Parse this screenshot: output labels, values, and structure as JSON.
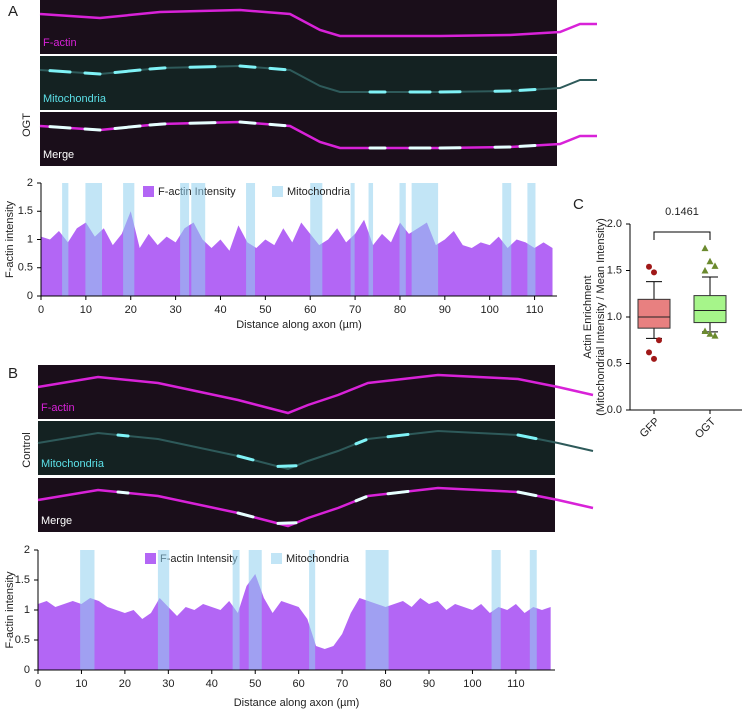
{
  "panels": [
    {
      "letter": "A",
      "condition": "OGT",
      "channels": [
        "F-actin",
        "Mitochondria",
        "Merge"
      ]
    },
    {
      "letter": "B",
      "condition": "Control",
      "channels": [
        "F-actin",
        "Mitochondria",
        "Merge"
      ]
    },
    {
      "letter": "C"
    }
  ],
  "chart_data": [
    {
      "type": "area",
      "ylabel": "F-actin intensity",
      "xlabel": "Distance along axon (µm)",
      "x": [
        0,
        2,
        4,
        6,
        8,
        10,
        12,
        14,
        16,
        18,
        20,
        22,
        24,
        26,
        28,
        30,
        32,
        34,
        36,
        38,
        40,
        42,
        44,
        46,
        48,
        50,
        52,
        54,
        56,
        58,
        60,
        62,
        64,
        66,
        68,
        70,
        72,
        74,
        76,
        78,
        80,
        82,
        84,
        86,
        88,
        90,
        92,
        94,
        96,
        98,
        100,
        102,
        104,
        106,
        108,
        110,
        112,
        114
      ],
      "series": [
        {
          "name": "F-actin Intensity",
          "color": "#b366f5",
          "values": [
            1.05,
            1.0,
            1.15,
            0.95,
            1.2,
            1.3,
            1.05,
            1.2,
            0.9,
            1.1,
            1.5,
            0.85,
            1.1,
            0.9,
            1.05,
            0.95,
            1.2,
            1.3,
            1.0,
            0.85,
            1.0,
            0.8,
            1.25,
            0.95,
            0.85,
            1.0,
            0.9,
            1.2,
            0.95,
            1.3,
            1.1,
            0.9,
            1.0,
            1.2,
            0.95,
            1.1,
            1.35,
            0.9,
            1.1,
            0.95,
            1.3,
            1.1,
            1.2,
            1.3,
            0.9,
            1.0,
            1.15,
            0.9,
            0.85,
            0.95,
            0.9,
            1.05,
            0.85,
            1.0,
            0.95,
            0.85,
            0.95,
            0.85
          ]
        }
      ],
      "bands": {
        "name": "Mitochondria",
        "color": "#8fd0ee",
        "ranges": [
          [
            4.7,
            6.1
          ],
          [
            9.9,
            13.6
          ],
          [
            18.3,
            20.8
          ],
          [
            31,
            33
          ],
          [
            33.5,
            36.6
          ],
          [
            45.7,
            47.7
          ],
          [
            60,
            62.7
          ],
          [
            69,
            69.9
          ],
          [
            73,
            74
          ],
          [
            79.9,
            81.3
          ],
          [
            82.6,
            88.5
          ],
          [
            102.8,
            104.8
          ],
          [
            108.4,
            110.2
          ]
        ]
      },
      "xlim": [
        0,
        115
      ],
      "xticks": [
        0,
        10,
        20,
        30,
        40,
        50,
        60,
        70,
        80,
        90,
        100,
        110
      ],
      "ylim": [
        0,
        2
      ],
      "yticks": [
        0,
        0.5,
        1,
        1.5,
        2
      ]
    },
    {
      "type": "area",
      "ylabel": "F-actin intensity",
      "xlabel": "Distance along axon (µm)",
      "x": [
        0,
        2,
        4,
        6,
        8,
        10,
        12,
        14,
        16,
        18,
        20,
        22,
        24,
        26,
        28,
        30,
        32,
        34,
        36,
        38,
        40,
        42,
        44,
        46,
        48,
        50,
        52,
        54,
        56,
        58,
        60,
        62,
        64,
        66,
        68,
        70,
        72,
        74,
        76,
        78,
        80,
        82,
        84,
        86,
        88,
        90,
        92,
        94,
        96,
        98,
        100,
        102,
        104,
        106,
        108,
        110,
        112,
        114,
        116,
        118
      ],
      "series": [
        {
          "name": "F-actin Intensity",
          "color": "#b366f5",
          "values": [
            1.1,
            1.15,
            1.05,
            1.1,
            1.15,
            1.1,
            1.2,
            1.15,
            1.05,
            1.0,
            0.95,
            1.0,
            0.85,
            0.95,
            1.2,
            1.05,
            0.9,
            1.05,
            1.0,
            1.1,
            1.05,
            1.0,
            1.15,
            0.95,
            1.4,
            1.6,
            1.2,
            0.95,
            1.15,
            1.1,
            1.05,
            0.85,
            0.4,
            0.35,
            0.4,
            0.6,
            0.95,
            1.2,
            1.15,
            1.1,
            1.05,
            1.1,
            1.15,
            1.05,
            1.2,
            1.1,
            1.15,
            1.0,
            1.1,
            1.05,
            1.0,
            1.1,
            0.95,
            1.05,
            1.0,
            1.1,
            0.95,
            1.05,
            1.0,
            1.05
          ]
        }
      ],
      "bands": {
        "name": "Mitochondria",
        "color": "#8fd0ee",
        "ranges": [
          [
            9.7,
            13
          ],
          [
            27.6,
            30.2
          ],
          [
            44.8,
            46.4
          ],
          [
            48.5,
            51.5
          ],
          [
            62.4,
            63.8
          ],
          [
            75.4,
            80.7
          ],
          [
            104.4,
            106.5
          ],
          [
            113.2,
            114.8
          ]
        ]
      },
      "xlim": [
        0,
        119
      ],
      "xticks": [
        0,
        10,
        20,
        30,
        40,
        50,
        60,
        70,
        80,
        90,
        100,
        110
      ],
      "ylim": [
        0,
        2
      ],
      "yticks": [
        0,
        0.5,
        1,
        1.5,
        2
      ]
    },
    {
      "type": "box",
      "ylabel": [
        "Actin Enrichment",
        "(Mitochondrial Intensity / Mean Intensity)"
      ],
      "annotations": [
        "0.1461"
      ],
      "series": [
        {
          "name": "GFP",
          "color": "#e88080",
          "edge": "#a01818",
          "marker": "circle",
          "whisker_low": 0.77,
          "q1": 0.88,
          "median": 1.0,
          "q3": 1.19,
          "whisker_high": 1.38,
          "outliers": [
            1.54,
            1.48,
            0.75,
            0.62,
            0.55
          ]
        },
        {
          "name": "OGT",
          "color": "#a6f58a",
          "edge": "#6b8a2e",
          "marker": "triangle",
          "whisker_low": 0.84,
          "q1": 0.94,
          "median": 1.07,
          "q3": 1.23,
          "whisker_high": 1.43,
          "outliers": [
            1.74,
            1.6,
            1.55,
            1.5,
            0.82,
            0.8,
            0.85
          ]
        }
      ],
      "ylim": [
        0,
        2
      ],
      "yticks": [
        {
          "value": 0,
          "label": "0.0"
        },
        {
          "value": 0.5,
          "label": "0.5"
        },
        {
          "value": 1,
          "label": "1.0"
        },
        {
          "value": 1.5,
          "label": "1.5"
        },
        {
          "value": 2,
          "label": "2.0"
        }
      ]
    }
  ]
}
